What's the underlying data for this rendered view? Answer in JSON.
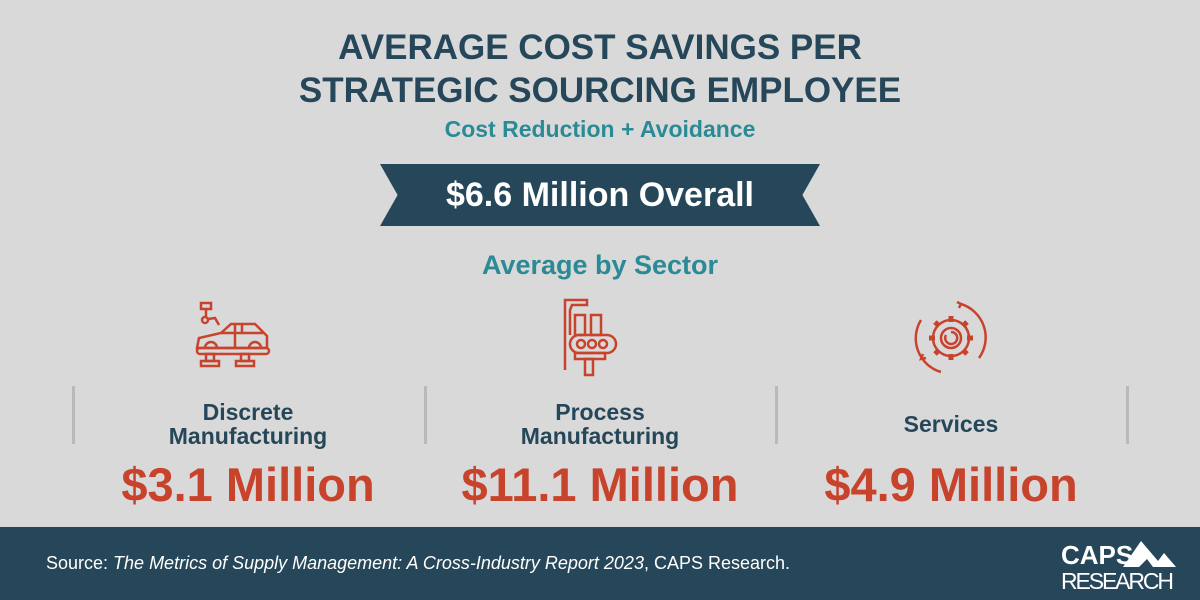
{
  "title_lines": [
    "AVERAGE COST SAVINGS PER",
    "STRATEGIC SOURCING EMPLOYEE"
  ],
  "subtitle": "Cost Reduction + Avoidance",
  "overall": "$6.6 Million Overall",
  "sector_heading": "Average by Sector",
  "sectors": [
    {
      "label_lines": [
        "Discrete",
        "Manufacturing"
      ],
      "value": "$3.1 Million",
      "icon": "car-assembly-icon"
    },
    {
      "label_lines": [
        "Process",
        "Manufacturing"
      ],
      "value": "$11.1 Million",
      "icon": "conveyor-icon"
    },
    {
      "label_lines": [
        "Services"
      ],
      "value": "$4.9 Million",
      "icon": "gear-cycle-icon"
    }
  ],
  "source": {
    "prefix": "Source: ",
    "title": "The Metrics of Supply Management: A Cross-Industry Report 2023",
    "suffix": ", CAPS Research."
  },
  "logo": {
    "line1": "CAPS",
    "line2": "RESEARCH"
  },
  "colors": {
    "background": "#d9d9d9",
    "navy": "#26475a",
    "teal": "#2a8a95",
    "red": "#c8432c"
  }
}
